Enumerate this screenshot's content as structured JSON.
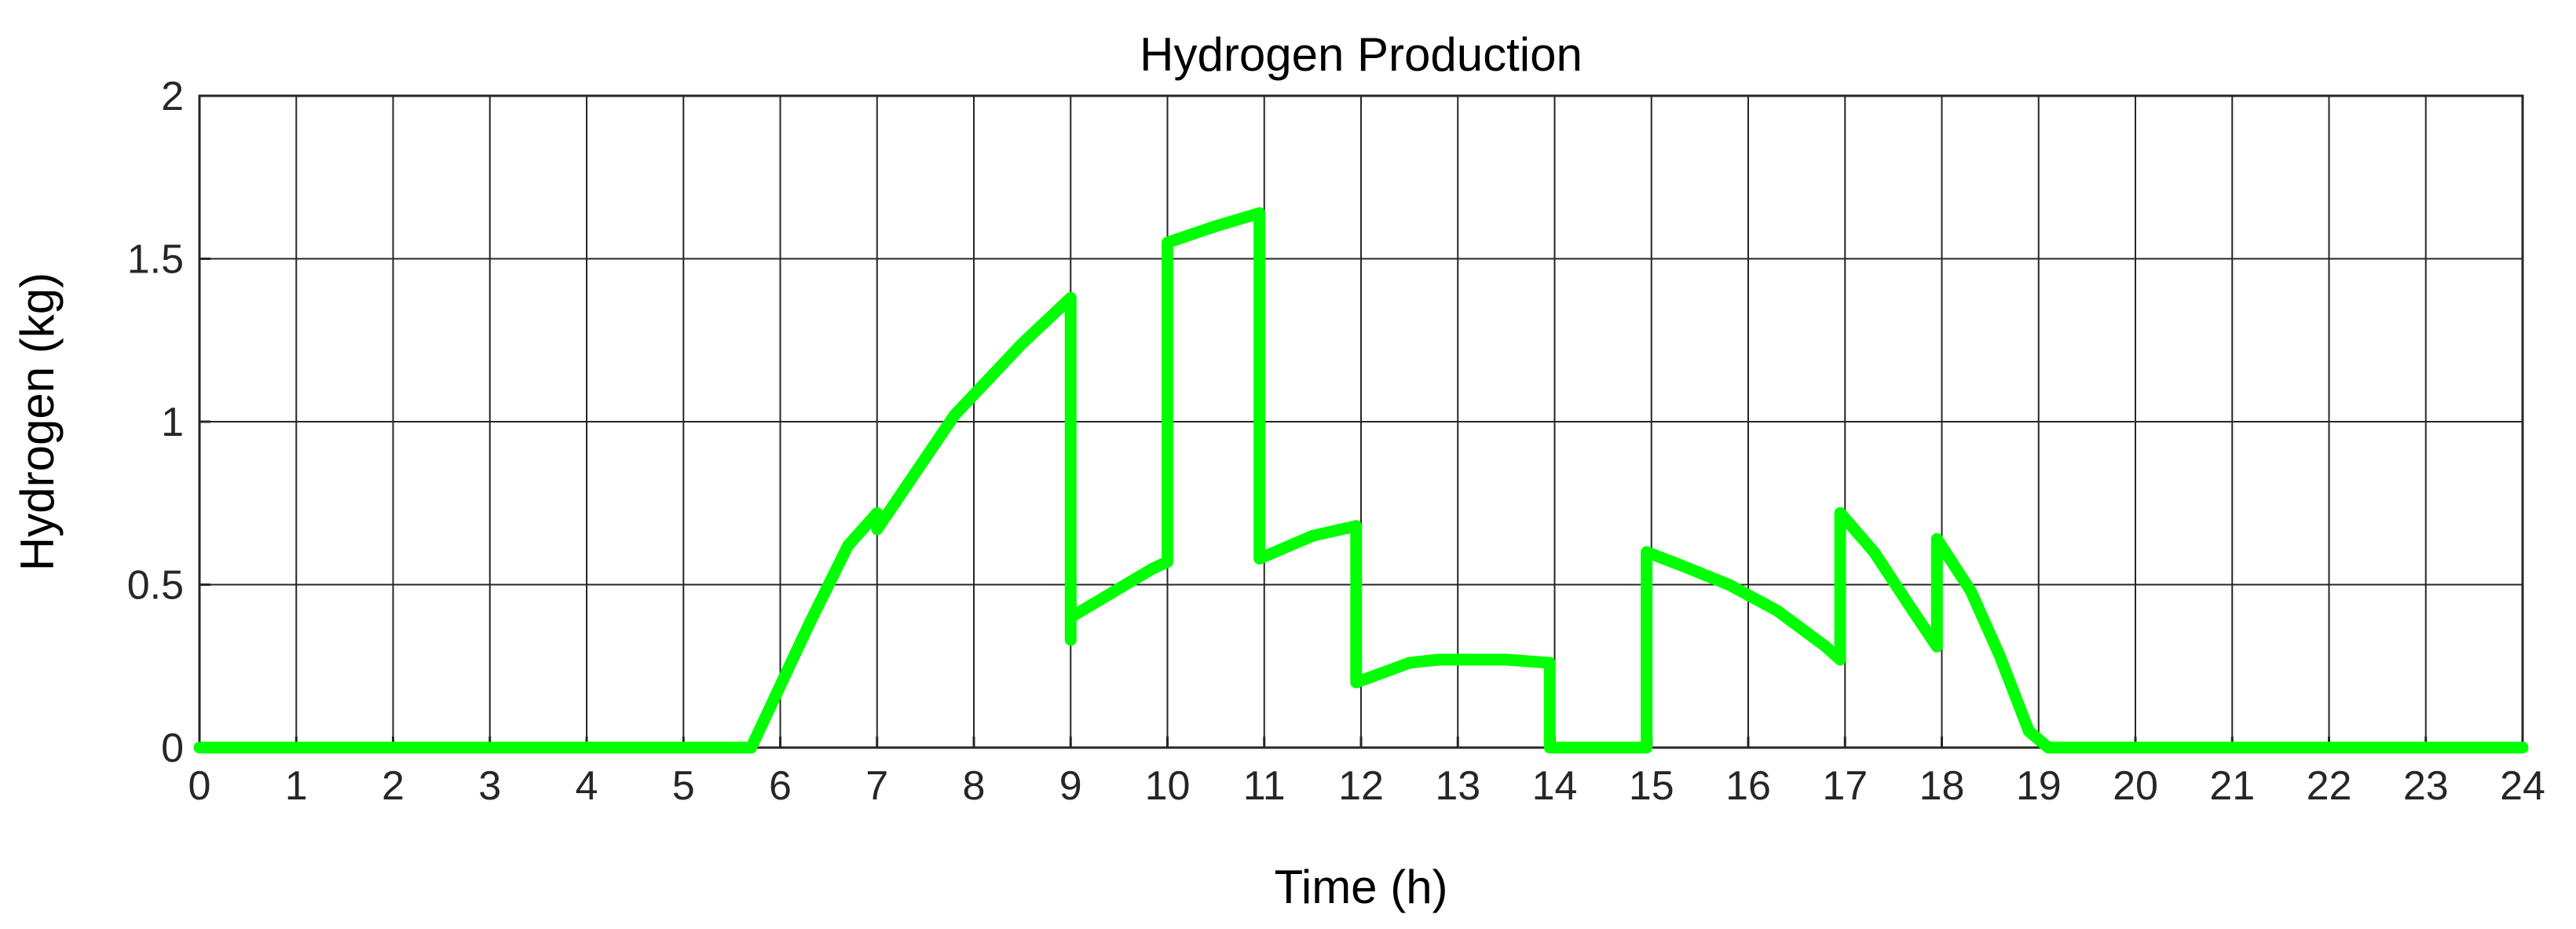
{
  "chart_data": {
    "type": "line",
    "title": "Hydrogen Production",
    "xlabel": "Time (h)",
    "ylabel": "Hydrogen (kg)",
    "xlim": [
      0,
      24
    ],
    "ylim": [
      0,
      2
    ],
    "xticks": [
      "0",
      "1",
      "2",
      "3",
      "4",
      "5",
      "6",
      "7",
      "8",
      "9",
      "10",
      "11",
      "12",
      "13",
      "14",
      "15",
      "16",
      "17",
      "18",
      "19",
      "20",
      "21",
      "22",
      "23",
      "24"
    ],
    "yticks": [
      "0",
      "0.5",
      "1",
      "1.5",
      "2"
    ],
    "grid": true,
    "legend": "none",
    "series": [
      {
        "color": "#00ff00",
        "x": [
          0,
          5.7,
          6.3,
          6.7,
          7.0,
          7.0,
          7.8,
          8.5,
          9.0,
          9.0,
          9.0,
          9.85,
          10.0,
          10.0,
          10.5,
          10.95,
          10.95,
          11.5,
          11.95,
          11.95,
          12.5,
          12.8,
          13.5,
          13.95,
          13.95,
          14.5,
          14.95,
          14.95,
          15.3,
          15.8,
          16.3,
          16.8,
          16.95,
          16.95,
          17.3,
          17.7,
          17.95,
          17.95,
          18.3,
          18.6,
          18.9,
          19.1,
          24
        ],
        "y": [
          0,
          0,
          0.38,
          0.62,
          0.72,
          0.67,
          1.02,
          1.24,
          1.38,
          0.33,
          0.4,
          0.55,
          0.57,
          1.55,
          1.6,
          1.64,
          0.58,
          0.65,
          0.68,
          0.2,
          0.26,
          0.27,
          0.27,
          0.26,
          0,
          0,
          0,
          0.6,
          0.56,
          0.5,
          0.42,
          0.31,
          0.27,
          0.72,
          0.6,
          0.42,
          0.31,
          0.64,
          0.48,
          0.28,
          0.05,
          0,
          0
        ]
      }
    ]
  }
}
